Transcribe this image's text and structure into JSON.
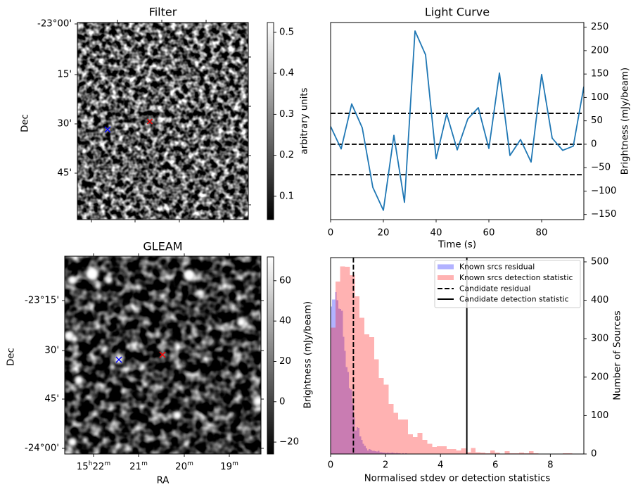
{
  "chart_data": [
    {
      "type": "heatmap",
      "title": "Filter",
      "ylabel": "Dec",
      "ytick_labels": [
        "-23°00'",
        "15'",
        "30'",
        "45'"
      ],
      "colorbar": {
        "label": "arbitrary units",
        "ticks": [
          0.5,
          0.4,
          0.3,
          0.2,
          0.1
        ],
        "tick_labels": [
          "0.5",
          "0.4",
          "0.3",
          "0.2",
          "0.1"
        ],
        "range": [
          0.043,
          0.524
        ]
      },
      "markers": [
        {
          "color": "#0000ff",
          "marker": "x"
        },
        {
          "color": "#ff0000",
          "marker": "x"
        }
      ]
    },
    {
      "type": "heatmap",
      "title": "GLEAM",
      "xlabel": "RA",
      "ylabel": "Dec",
      "xtick_labels": [
        [
          {
            "t": "15"
          },
          {
            "t": "h",
            "sup": true
          },
          {
            "t": "22"
          },
          {
            "t": "m",
            "sup": true
          }
        ],
        [
          {
            "t": "21"
          },
          {
            "t": "m",
            "sup": true
          }
        ],
        [
          {
            "t": "20"
          },
          {
            "t": "m",
            "sup": true
          }
        ],
        [
          {
            "t": "19"
          },
          {
            "t": "m",
            "sup": true
          }
        ]
      ],
      "ytick_labels": [
        "-23°15'",
        "30'",
        "45'",
        "-24°00'"
      ],
      "colorbar": {
        "label": "Brightness (mJy/beam)",
        "ticks": [
          60,
          40,
          20,
          0,
          -20
        ],
        "tick_labels": [
          "60",
          "40",
          "20",
          "0",
          "−20"
        ],
        "range": [
          -25.9,
          71.8
        ]
      },
      "markers": [
        {
          "color": "#0000ff",
          "marker": "x"
        },
        {
          "color": "#ff0000",
          "marker": "x"
        }
      ]
    },
    {
      "type": "line",
      "title": "Light Curve",
      "xlabel": "Time (s)",
      "ylabel": "Brightness (mJy/beam)",
      "yaxis_side": "right",
      "x": [
        0,
        4,
        8,
        12,
        16,
        20,
        24,
        28,
        32,
        36,
        40,
        44,
        48,
        52,
        56,
        60,
        64,
        68,
        72,
        76,
        80,
        84,
        88,
        92,
        96
      ],
      "series": [
        {
          "color": "#1f77b4",
          "values": [
            38,
            -10,
            86,
            35,
            -92,
            -141,
            19,
            -124,
            242,
            191,
            -31,
            65,
            -12,
            54,
            78,
            -9,
            152,
            -24,
            10,
            -38,
            149,
            13,
            -13,
            -4,
            123
          ]
        }
      ],
      "hlines": [
        {
          "value": 66,
          "linestyle": "dashed",
          "color": "#000000"
        },
        {
          "value": 0,
          "linestyle": "dashed",
          "color": "#000000"
        },
        {
          "value": -65,
          "linestyle": "dashed",
          "color": "#000000"
        }
      ],
      "xlim": [
        0,
        96
      ],
      "ylim": [
        -161,
        260
      ],
      "xticks": [
        0,
        20,
        40,
        60,
        80
      ],
      "xtick_labels": [
        "0",
        "20",
        "40",
        "60",
        "80"
      ],
      "yticks": [
        250,
        200,
        150,
        100,
        50,
        0,
        -50,
        -100,
        -150
      ],
      "ytick_labels": [
        "250",
        "200",
        "150",
        "100",
        "50",
        "0",
        "−50",
        "−100",
        "−150"
      ]
    },
    {
      "type": "bar",
      "subtype": "histogram",
      "xlabel": "Normalised stdev or detection statistics",
      "ylabel": "Number of Sources",
      "yaxis_side": "right",
      "series": [
        {
          "name": "Known srcs residual",
          "color": "#0000ff",
          "alpha": 0.3,
          "bin_start": 0,
          "bin_width": 0.0555,
          "counts": [
            384,
            402,
            402,
            421,
            400,
            378,
            377,
            373,
            305,
            268,
            226,
            213,
            171,
            168,
            131,
            95,
            61,
            70,
            68,
            46,
            37,
            27,
            21,
            15,
            9,
            13,
            11,
            8,
            8,
            7,
            6,
            8,
            5,
            5,
            4,
            4,
            3,
            4,
            3,
            3,
            4,
            3,
            2,
            3,
            2,
            2,
            1,
            2,
            1,
            2
          ]
        },
        {
          "name": "Known srcs detection statistic",
          "color": "#ff0000",
          "alpha": 0.3,
          "bin_start": 0,
          "bin_width": 0.176,
          "counts": [
            329,
            449,
            488,
            487,
            465,
            410,
            354,
            311,
            304,
            246,
            198,
            180,
            130,
            107,
            90,
            90,
            51,
            44,
            55,
            37,
            27,
            18,
            20,
            20,
            13,
            13,
            9,
            15,
            5,
            16,
            5,
            4,
            2,
            9,
            4,
            0,
            7,
            2,
            2,
            4,
            2,
            7,
            2,
            0,
            0,
            0,
            0,
            0,
            2,
            2
          ]
        }
      ],
      "vlines": [
        {
          "name": "Candidate residual",
          "value": 0.83,
          "linestyle": "dashed",
          "color": "#000000"
        },
        {
          "name": "Candidate detection statistic",
          "value": 4.96,
          "linestyle": "solid",
          "color": "#000000"
        }
      ],
      "xlim": [
        0,
        9.22
      ],
      "ylim": [
        0,
        511
      ],
      "xticks": [
        0,
        2,
        4,
        6,
        8
      ],
      "xtick_labels": [
        "0",
        "2",
        "4",
        "6",
        "8"
      ],
      "yticks": [
        0,
        100,
        200,
        300,
        400,
        500
      ],
      "ytick_labels": [
        "0",
        "100",
        "200",
        "300",
        "400",
        "500"
      ],
      "legend_position": "top-right"
    }
  ]
}
